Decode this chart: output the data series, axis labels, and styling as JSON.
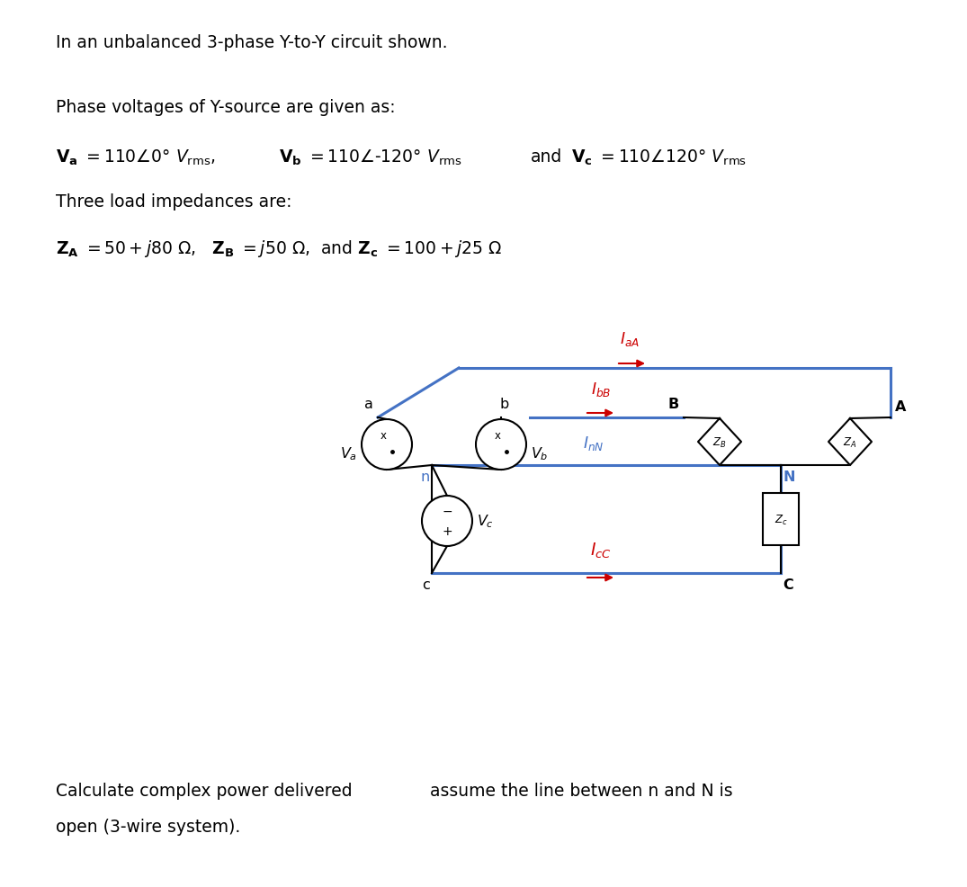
{
  "bg_color": "#ffffff",
  "text_color": "#000000",
  "circuit_blue": "#4472C4",
  "circuit_red": "#CC0000",
  "circuit_cyan": "#4472C4",
  "bottom_line1": "Calculate complex power delivered",
  "bottom_line2": "open (3-wire system).",
  "bottom_right": "assume the line between n and N is"
}
